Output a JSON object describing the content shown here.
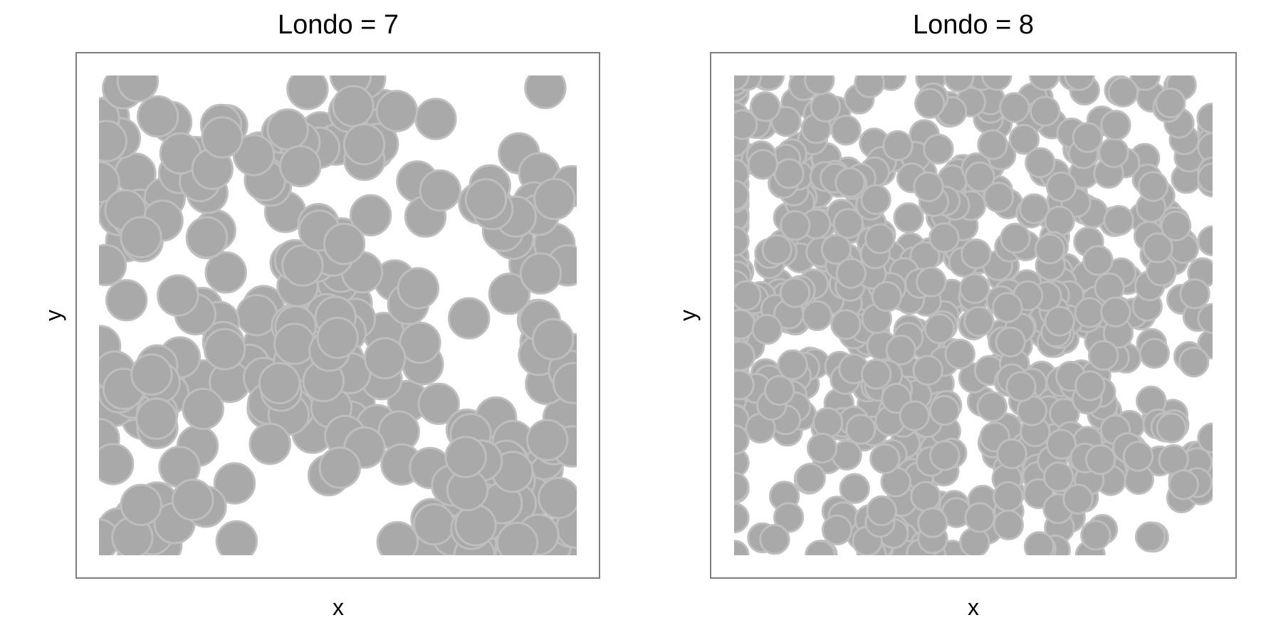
{
  "chart_data": [
    {
      "type": "scatter",
      "title": "Londo = 7",
      "xlabel": "x",
      "ylabel": "y",
      "xlim": [
        0,
        1
      ],
      "ylim": [
        0,
        1
      ],
      "axis_ticks": false,
      "grid": false,
      "point_fill": "#a9a9a9",
      "point_stroke": "#bebebe",
      "radius_data": 0.042,
      "clusters": [
        {
          "cx": 0.42,
          "cy": 0.45,
          "n": 70,
          "spread": 0.11
        },
        {
          "cx": 0.82,
          "cy": 0.12,
          "n": 55,
          "spread": 0.1
        },
        {
          "cx": 0.1,
          "cy": 0.75,
          "n": 28,
          "spread": 0.08
        },
        {
          "cx": 0.1,
          "cy": 0.3,
          "n": 18,
          "spread": 0.07
        },
        {
          "cx": 0.55,
          "cy": 0.88,
          "n": 16,
          "spread": 0.08
        },
        {
          "cx": 0.88,
          "cy": 0.68,
          "n": 16,
          "spread": 0.06
        },
        {
          "cx": 0.08,
          "cy": 0.06,
          "n": 10,
          "spread": 0.06
        },
        {
          "cx": 0.94,
          "cy": 0.45,
          "n": 9,
          "spread": 0.05
        },
        {
          "cx": 0.32,
          "cy": 0.86,
          "n": 12,
          "spread": 0.07
        },
        {
          "cx": 0.52,
          "cy": 0.62,
          "n": 6,
          "spread": 0.05
        }
      ],
      "scatter_points": 45,
      "seed": 7
    },
    {
      "type": "scatter",
      "title": "Londo = 8",
      "xlabel": "x",
      "ylabel": "y",
      "xlim": [
        0,
        1
      ],
      "ylim": [
        0,
        1
      ],
      "axis_ticks": false,
      "grid": false,
      "point_fill": "#a9a9a9",
      "point_stroke": "#bebebe",
      "radius_data": 0.03,
      "clusters": [
        {
          "cx": 0.22,
          "cy": 0.5,
          "n": 230,
          "spread": 0.2
        },
        {
          "cx": 0.65,
          "cy": 0.45,
          "n": 200,
          "spread": 0.19
        },
        {
          "cx": 0.12,
          "cy": 0.88,
          "n": 60,
          "spread": 0.11
        },
        {
          "cx": 0.55,
          "cy": 0.88,
          "n": 45,
          "spread": 0.13
        },
        {
          "cx": 0.9,
          "cy": 0.85,
          "n": 25,
          "spread": 0.09
        },
        {
          "cx": 0.95,
          "cy": 0.2,
          "n": 14,
          "spread": 0.06
        },
        {
          "cx": 0.3,
          "cy": 0.1,
          "n": 40,
          "spread": 0.12
        },
        {
          "cx": 0.7,
          "cy": 0.15,
          "n": 30,
          "spread": 0.1
        }
      ],
      "scatter_points": 50,
      "seed": 8
    }
  ]
}
